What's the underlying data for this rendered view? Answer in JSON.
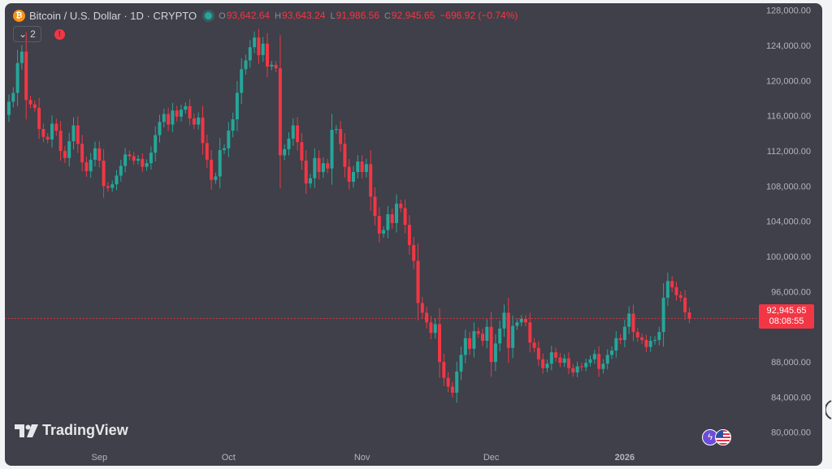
{
  "header": {
    "coin_icon_glyph": "₿",
    "symbol_title": "Bitcoin / U.S. Dollar · 1D · CRYPTO",
    "ohlc": {
      "open_key": "O",
      "open": "93,642.64",
      "high_key": "H",
      "high": "93,643.24",
      "low_key": "L",
      "low": "91,986.56",
      "close_key": "C",
      "close": "92,945.65"
    },
    "change": "−696.92 (−0.74%)",
    "indicator_toggle_glyph": "⌄",
    "indicator_count": "2",
    "alert_glyph": "!"
  },
  "price_tag": {
    "price": "92,945.65",
    "countdown": "08:08:55"
  },
  "logo": {
    "text": "TradingView"
  },
  "colors": {
    "up": "#26a69a",
    "down": "#f23645",
    "background": "#3f4049",
    "axis_text": "#b2b5be",
    "price_line": "#f23645"
  },
  "chart_data": {
    "type": "candlestick",
    "title": "Bitcoin / U.S. Dollar · 1D · CRYPTO",
    "ylim": [
      78500,
      128800
    ],
    "y_ticks": [
      {
        "value": 128000,
        "label": "128,000.00"
      },
      {
        "value": 124000,
        "label": "124,000.00"
      },
      {
        "value": 120000,
        "label": "120,000.00"
      },
      {
        "value": 116000,
        "label": "116,000.00"
      },
      {
        "value": 112000,
        "label": "112,000.00"
      },
      {
        "value": 108000,
        "label": "108,000.00"
      },
      {
        "value": 104000,
        "label": "104,000.00"
      },
      {
        "value": 100000,
        "label": "100,000.00"
      },
      {
        "value": 96000,
        "label": "96,000.00"
      },
      {
        "value": 88000,
        "label": "88,000.00"
      },
      {
        "value": 84000,
        "label": "84,000.00"
      },
      {
        "value": 80000,
        "label": "80,000.00"
      }
    ],
    "x_ticks": [
      {
        "index": 21,
        "label": "Sep",
        "bold": false
      },
      {
        "index": 51,
        "label": "Oct",
        "bold": false
      },
      {
        "index": 82,
        "label": "Nov",
        "bold": false
      },
      {
        "index": 112,
        "label": "Dec",
        "bold": false
      },
      {
        "index": 143,
        "label": "2026",
        "bold": true
      }
    ],
    "last_price": 92945.65,
    "close": [
      117600,
      118600,
      122000,
      123300,
      117800,
      117300,
      116900,
      114500,
      113600,
      113300,
      115100,
      114300,
      112000,
      111200,
      113100,
      114900,
      112800,
      110700,
      109700,
      111000,
      112300,
      110900,
      108000,
      107800,
      108200,
      109200,
      110300,
      111600,
      111400,
      110900,
      111100,
      110200,
      110600,
      111800,
      113800,
      115300,
      116200,
      115000,
      116600,
      115900,
      116700,
      117100,
      115700,
      115000,
      115800,
      112900,
      111000,
      108700,
      109100,
      112100,
      112300,
      114300,
      115600,
      118600,
      121300,
      122300,
      123800,
      124900,
      122900,
      124200,
      121600,
      121800,
      121400,
      111500,
      112200,
      113400,
      114900,
      113000,
      110900,
      108300,
      108900,
      111200,
      109600,
      110600,
      110000,
      114400,
      114500,
      112800,
      110200,
      108500,
      109600,
      110800,
      109600,
      110500,
      106800,
      104600,
      102600,
      103000,
      104800,
      103800,
      106000,
      105500,
      103600,
      101300,
      99500,
      94700,
      93600,
      92500,
      91300,
      92300,
      88000,
      86200,
      85200,
      84500,
      86900,
      88800,
      90700,
      89500,
      91500,
      91200,
      90400,
      92000,
      88000,
      90100,
      91800,
      93600,
      89600,
      92100,
      92500,
      92900,
      92500,
      90200,
      89600,
      88300,
      87300,
      87800,
      89100,
      88500,
      87900,
      88400,
      87300,
      86800,
      87500,
      87400,
      87900,
      88300,
      88900,
      87200,
      87800,
      88800,
      89300,
      90700,
      90500,
      92000,
      93500,
      91400,
      90800,
      90500,
      89700,
      90400,
      90500,
      91400,
      95300,
      97200,
      96500,
      95600,
      95300,
      93640,
      92945
    ]
  }
}
